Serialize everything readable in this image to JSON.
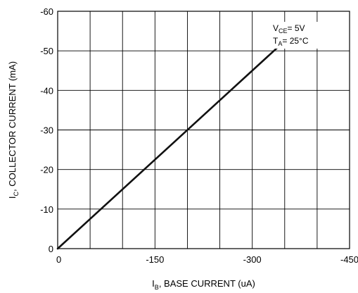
{
  "chart_data": {
    "type": "line",
    "title": "",
    "xlabel": {
      "main": "I",
      "sub": "B",
      "rest": ", BASE CURRENT (uA)"
    },
    "ylabel": {
      "main": "I",
      "sub": "C",
      "rest": ", COLLECTOR CURRENT (mA)"
    },
    "xlim": [
      0,
      -450
    ],
    "ylim": [
      0,
      -60
    ],
    "x_ticks": [
      0,
      -150,
      -300,
      -450
    ],
    "x_tick_labels": [
      "0",
      "-150",
      "-300",
      "-450"
    ],
    "y_ticks": [
      0,
      -10,
      -20,
      -30,
      -40,
      -50,
      -60
    ],
    "y_tick_labels": [
      "0",
      "-10",
      "-20",
      "-30",
      "-40",
      "-50",
      "-60"
    ],
    "grid": true,
    "series": [
      {
        "x": [
          0,
          -340
        ],
        "y": [
          0,
          -51
        ]
      }
    ],
    "annotations": {
      "line1": {
        "main": "V",
        "sub": "CE",
        "rest": "= 5V"
      },
      "line2": {
        "main": "T",
        "sub": "A",
        "rest": "= 25°C"
      }
    },
    "colors": {
      "line": "#111111",
      "grid": "#000000",
      "background": "#ffffff"
    }
  }
}
